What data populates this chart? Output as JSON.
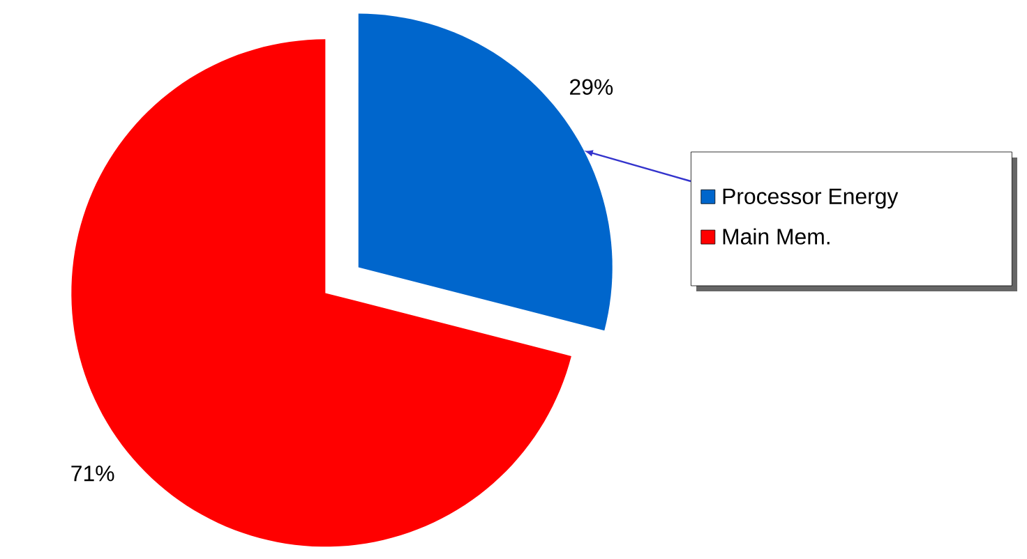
{
  "chart_data": {
    "type": "pie",
    "categories": [
      "Processor Energy",
      "Main Mem."
    ],
    "values": [
      29,
      71
    ],
    "colors": [
      "#0066cc",
      "#ff0000"
    ],
    "value_labels": [
      "29%",
      "71%"
    ],
    "legend": "right"
  }
}
